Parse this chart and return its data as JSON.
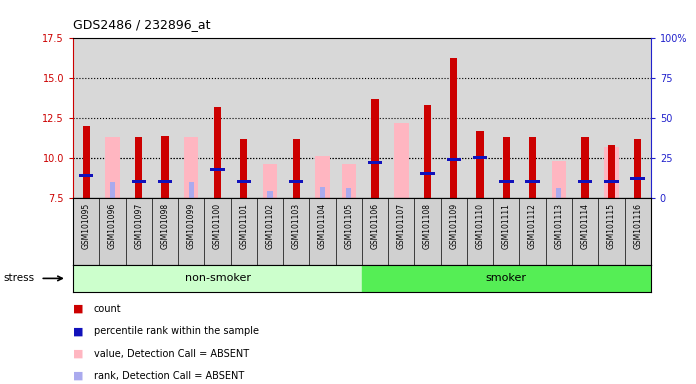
{
  "title": "GDS2486 / 232896_at",
  "samples": [
    "GSM101095",
    "GSM101096",
    "GSM101097",
    "GSM101098",
    "GSM101099",
    "GSM101100",
    "GSM101101",
    "GSM101102",
    "GSM101103",
    "GSM101104",
    "GSM101105",
    "GSM101106",
    "GSM101107",
    "GSM101108",
    "GSM101109",
    "GSM101110",
    "GSM101111",
    "GSM101112",
    "GSM101113",
    "GSM101114",
    "GSM101115",
    "GSM101116"
  ],
  "red_values": [
    12.0,
    0,
    11.3,
    11.4,
    0,
    13.2,
    11.2,
    0,
    11.2,
    0,
    0,
    13.7,
    0,
    13.3,
    16.3,
    11.7,
    11.3,
    11.3,
    0,
    11.3,
    10.8,
    11.2
  ],
  "pink_values": [
    0,
    11.3,
    0,
    0,
    11.3,
    0,
    0,
    9.6,
    0,
    10.1,
    9.6,
    0,
    12.2,
    0,
    0,
    0,
    0,
    0,
    9.8,
    0,
    10.7,
    0
  ],
  "blue_values": [
    8.9,
    0,
    8.5,
    8.5,
    0,
    9.3,
    8.5,
    0,
    8.5,
    0,
    0,
    9.7,
    0,
    9.0,
    9.9,
    10.0,
    8.5,
    8.5,
    0,
    8.5,
    8.5,
    8.7
  ],
  "lb_values": [
    0,
    8.5,
    0,
    0,
    8.5,
    0,
    0,
    7.9,
    0,
    8.2,
    8.1,
    0,
    0,
    0,
    0,
    0,
    0,
    0,
    8.1,
    0,
    8.1,
    0
  ],
  "baseline": 7.5,
  "ylim_left": [
    7.5,
    17.5
  ],
  "ylim_right": [
    0,
    100
  ],
  "yticks_left": [
    7.5,
    10.0,
    12.5,
    15.0,
    17.5
  ],
  "yticks_right": [
    0,
    25,
    50,
    75,
    100
  ],
  "gridlines": [
    10.0,
    12.5,
    15.0
  ],
  "non_smoker_count": 11,
  "smoker_count": 11,
  "color_red": "#cc0000",
  "color_pink": "#ffb6c1",
  "color_blue": "#1111bb",
  "color_light_blue": "#aaaaee",
  "color_nonsmoker_bg": "#ccffcc",
  "color_smoker_bg": "#55ee55",
  "color_axes_bg": "#d8d8d8",
  "color_cell_bg": "#d0d0d0",
  "left_axis_color": "#cc0000",
  "right_axis_color": "#2222cc",
  "legend_items": [
    {
      "color": "#cc0000",
      "label": "count"
    },
    {
      "color": "#1111bb",
      "label": "percentile rank within the sample"
    },
    {
      "color": "#ffb6c1",
      "label": "value, Detection Call = ABSENT"
    },
    {
      "color": "#aaaaee",
      "label": "rank, Detection Call = ABSENT"
    }
  ]
}
